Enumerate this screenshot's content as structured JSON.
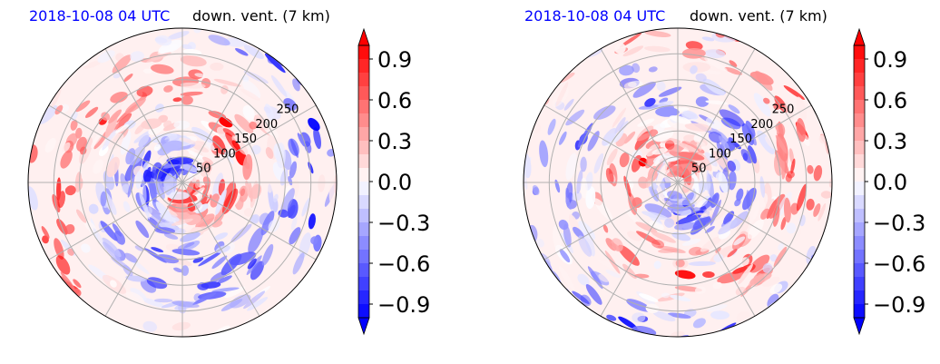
{
  "chart_data": [
    {
      "type": "heatmap",
      "projection": "polar",
      "title_left": "2018-10-08 04 UTC",
      "title_right": "down. vent. (7 km)",
      "title_left_color": "#0000ff",
      "ring_labels": [
        "50",
        "100",
        "150",
        "200",
        "250"
      ],
      "radial_rings": [
        50,
        100,
        150,
        200,
        250
      ],
      "radial_max": 300,
      "spokes_deg": [
        0,
        30,
        60,
        90,
        120,
        150,
        180,
        210,
        240,
        270,
        300,
        330
      ],
      "colorbar": {
        "ticks": [
          0.9,
          0.6,
          0.3,
          0.0,
          -0.3,
          -0.6,
          -0.9
        ],
        "tick_labels": [
          "0.9",
          "0.6",
          "0.3",
          "0.0",
          "−0.3",
          "−0.6",
          "−0.9"
        ],
        "vmin": -1.0,
        "vmax": 1.0,
        "extend": "both",
        "cmap": "bwr",
        "color_min": "#0000ff",
        "color_mid": "#ffffff",
        "color_max": "#ff0000"
      }
    },
    {
      "type": "heatmap",
      "projection": "polar",
      "title_left": "2018-10-08 04 UTC",
      "title_right": "down. vent. (7 km)",
      "title_left_color": "#0000ff",
      "ring_labels": [
        "50",
        "100",
        "150",
        "200",
        "250"
      ],
      "radial_rings": [
        50,
        100,
        150,
        200,
        250
      ],
      "radial_max": 300,
      "spokes_deg": [
        0,
        30,
        60,
        90,
        120,
        150,
        180,
        210,
        240,
        270,
        300,
        330
      ],
      "colorbar": {
        "ticks": [
          0.9,
          0.6,
          0.3,
          0.0,
          -0.3,
          -0.6,
          -0.9
        ],
        "tick_labels": [
          "0.9",
          "0.6",
          "0.3",
          "0.0",
          "−0.3",
          "−0.6",
          "−0.9"
        ],
        "vmin": -1.0,
        "vmax": 1.0,
        "extend": "both",
        "cmap": "bwr",
        "color_min": "#0000ff",
        "color_mid": "#ffffff",
        "color_max": "#ff0000"
      }
    }
  ]
}
